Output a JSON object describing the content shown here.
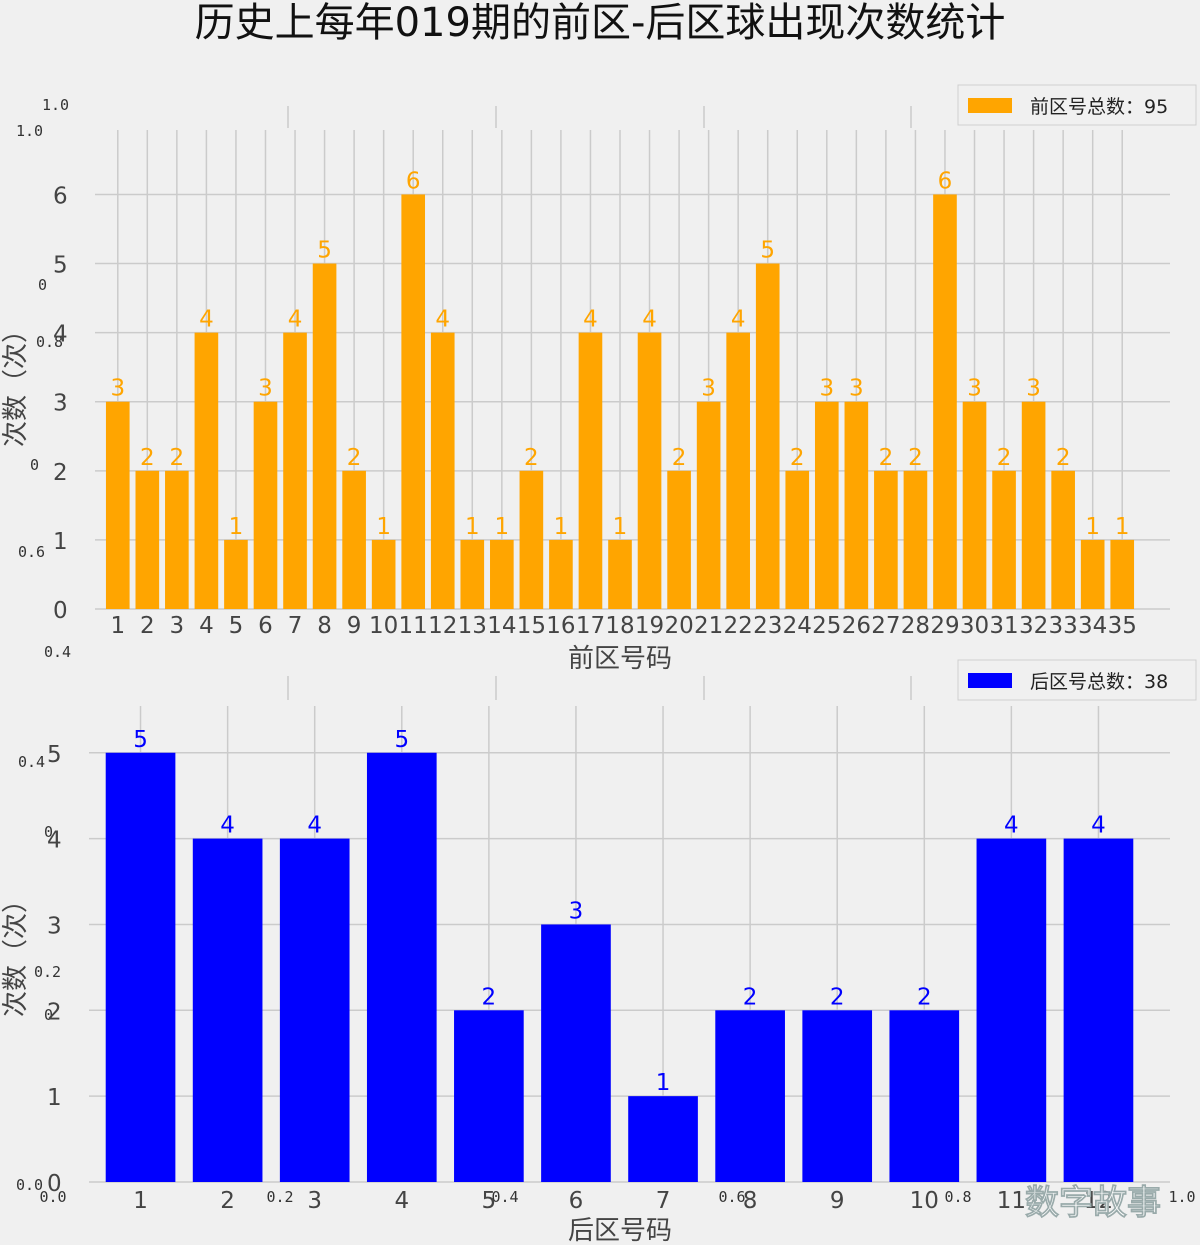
{
  "title": "历史上每年019期的前区-后区球出现次数统计",
  "watermark": "数字故事",
  "ghost_axis": {
    "left_labels": [
      "1.0",
      "0.8",
      "0.6",
      "0.4",
      "0.2",
      "0.0"
    ],
    "bottom_labels": [
      "0.0",
      "0.2",
      "0.4",
      "0.6",
      "0.8",
      "1.0"
    ]
  },
  "chart_data": [
    {
      "type": "bar",
      "name": "front",
      "categories": [
        "1",
        "2",
        "3",
        "4",
        "5",
        "6",
        "7",
        "8",
        "9",
        "10",
        "11",
        "12",
        "13",
        "14",
        "15",
        "16",
        "17",
        "18",
        "19",
        "20",
        "21",
        "22",
        "23",
        "24",
        "25",
        "26",
        "27",
        "28",
        "29",
        "30",
        "31",
        "32",
        "33",
        "34",
        "35"
      ],
      "values": [
        3,
        2,
        2,
        4,
        1,
        3,
        4,
        5,
        2,
        1,
        6,
        4,
        1,
        1,
        2,
        1,
        4,
        1,
        4,
        2,
        3,
        4,
        5,
        2,
        3,
        3,
        2,
        2,
        6,
        3,
        2,
        3,
        2,
        1,
        1
      ],
      "series": [
        {
          "name": "前区号总数：95",
          "values": [
            3,
            2,
            2,
            4,
            1,
            3,
            4,
            5,
            2,
            1,
            6,
            4,
            1,
            1,
            2,
            1,
            4,
            1,
            4,
            2,
            3,
            4,
            5,
            2,
            3,
            3,
            2,
            2,
            6,
            3,
            2,
            3,
            2,
            1,
            1
          ]
        }
      ],
      "legend": "前区号总数：95",
      "legend_position": "top-right",
      "xlabel": "前区号码",
      "ylabel": "次数（次）",
      "yticks": [
        "0",
        "1",
        "2",
        "3",
        "4",
        "5",
        "6"
      ],
      "ylim": [
        0,
        6.6
      ],
      "grid": true,
      "color": "#FFA500"
    },
    {
      "type": "bar",
      "name": "back",
      "categories": [
        "1",
        "2",
        "3",
        "4",
        "5",
        "6",
        "7",
        "8",
        "9",
        "10",
        "11",
        "12"
      ],
      "values": [
        5,
        4,
        4,
        5,
        2,
        3,
        1,
        2,
        2,
        2,
        4,
        4
      ],
      "series": [
        {
          "name": "后区号总数：38",
          "values": [
            5,
            4,
            4,
            5,
            2,
            3,
            1,
            2,
            2,
            2,
            4,
            4
          ]
        }
      ],
      "legend": "后区号总数：38",
      "legend_position": "top-right",
      "xlabel": "后区号码",
      "ylabel": "次数（次）",
      "yticks": [
        "0",
        "1",
        "2",
        "3",
        "4",
        "5"
      ],
      "ylim": [
        0,
        5.3
      ],
      "grid": true,
      "color": "#0000FF"
    }
  ]
}
